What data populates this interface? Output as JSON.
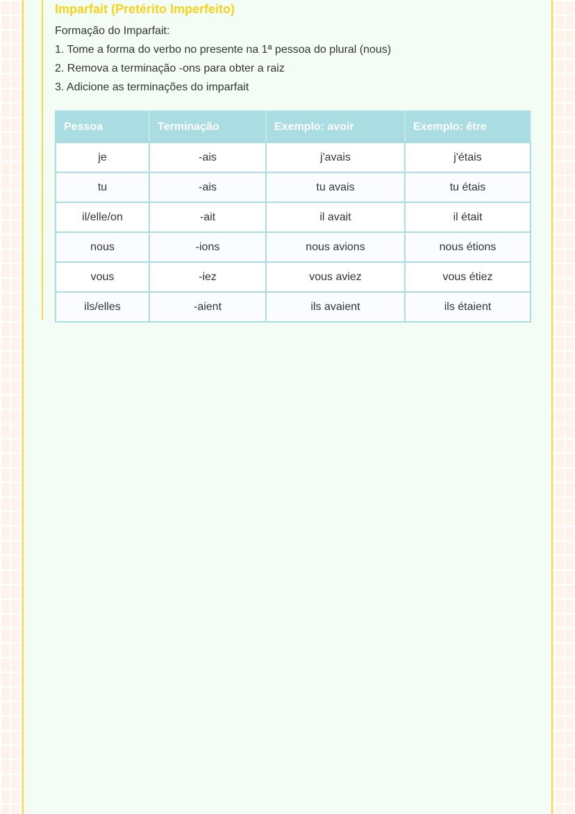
{
  "title": "Imparfait (Pretérito Imperfeito)",
  "intro": "Formação do Imparfait:",
  "steps": [
    "1. Tome a forma do verbo no presente na 1ª pessoa do plural (nous)",
    "2. Remova a terminação -ons para obter a raiz",
    "3. Adicione as terminações do imparfait"
  ],
  "table": {
    "headers": [
      "Pessoa",
      "Terminação",
      "Exemplo: avoir",
      "Exemplo: être"
    ],
    "rows": [
      [
        "je",
        "-ais",
        "j'avais",
        "j'étais"
      ],
      [
        "tu",
        "-ais",
        "tu avais",
        "tu étais"
      ],
      [
        "il/elle/on",
        "-ait",
        "il avait",
        "il était"
      ],
      [
        "nous",
        "-ions",
        "nous avions",
        "nous étions"
      ],
      [
        "vous",
        "-iez",
        "vous aviez",
        "vous étiez"
      ],
      [
        "ils/elles",
        "-aient",
        "ils avaient",
        "ils étaient"
      ]
    ]
  }
}
